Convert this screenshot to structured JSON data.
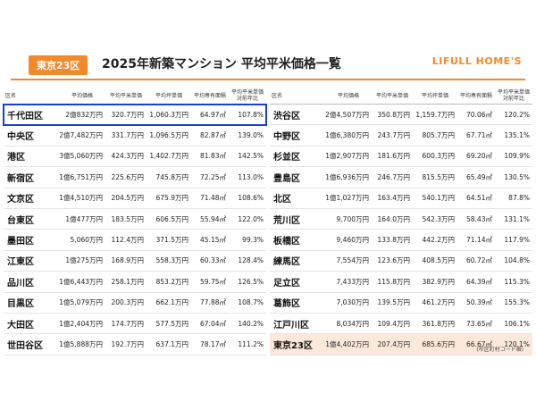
{
  "header": {
    "badge": "東京23区",
    "title": "2025年新築マンション 平均平米価格一覧",
    "logo": "LIFULL HOME'S"
  },
  "columns": [
    "区名",
    "平均価格",
    "平均平米単価",
    "平均坪単価",
    "平均専有面積",
    [
      "平均平米単価",
      "対前年比"
    ]
  ],
  "left": [
    [
      "千代田区",
      "2億832万円",
      "320.7万円",
      "1,060.3万円",
      "64.97㎡",
      "107.8%"
    ],
    [
      "中央区",
      "2億7,482万円",
      "331.7万円",
      "1,096.5万円",
      "82.87㎡",
      "139.0%"
    ],
    [
      "港区",
      "3億5,060万円",
      "424.3万円",
      "1,402.7万円",
      "81.83㎡",
      "142.5%"
    ],
    [
      "新宿区",
      "1億6,751万円",
      "225.6万円",
      "745.8万円",
      "72.25㎡",
      "113.0%"
    ],
    [
      "文京区",
      "1億4,510万円",
      "204.5万円",
      "675.9万円",
      "71.48㎡",
      "108.6%"
    ],
    [
      "台東区",
      "1億477万円",
      "183.5万円",
      "606.5万円",
      "55.94㎡",
      "122.0%"
    ],
    [
      "墨田区",
      "5,060万円",
      "112.4万円",
      "371.5万円",
      "45.15㎡",
      "99.3%"
    ],
    [
      "江東区",
      "1億275万円",
      "168.9万円",
      "558.3万円",
      "60.33㎡",
      "128.4%"
    ],
    [
      "品川区",
      "1億6,443万円",
      "258.1万円",
      "853.2万円",
      "59.75㎡",
      "126.5%"
    ],
    [
      "目黒区",
      "1億5,079万円",
      "200.3万円",
      "662.1万円",
      "77.88㎡",
      "108.7%"
    ],
    [
      "大田区",
      "1億2,404万円",
      "174.7万円",
      "577.5万円",
      "67.04㎡",
      "140.2%"
    ],
    [
      "世田谷区",
      "1億5,888万円",
      "192.7万円",
      "637.1万円",
      "78.17㎡",
      "111.2%"
    ]
  ],
  "right": [
    [
      "渋谷区",
      "2億4,507万円",
      "350.8万円",
      "1,159.7万円",
      "70.06㎡",
      "120.2%"
    ],
    [
      "中野区",
      "1億6,380万円",
      "243.7万円",
      "805.7万円",
      "67.71㎡",
      "135.1%"
    ],
    [
      "杉並区",
      "1億2,907万円",
      "181.6万円",
      "600.3万円",
      "69.20㎡",
      "109.9%"
    ],
    [
      "豊島区",
      "1億6,936万円",
      "246.7万円",
      "815.5万円",
      "65.49㎡",
      "130.5%"
    ],
    [
      "北区",
      "1億1,027万円",
      "163.4万円",
      "540.1万円",
      "64.51㎡",
      "87.8%"
    ],
    [
      "荒川区",
      "9,700万円",
      "164.0万円",
      "542.3万円",
      "58.43㎡",
      "131.1%"
    ],
    [
      "板橋区",
      "9,460万円",
      "133.8万円",
      "442.2万円",
      "71.14㎡",
      "117.9%"
    ],
    [
      "練馬区",
      "7,554万円",
      "123.6万円",
      "408.5万円",
      "60.72㎡",
      "104.8%"
    ],
    [
      "足立区",
      "7,433万円",
      "115.8万円",
      "382.9万円",
      "64.39㎡",
      "115.3%"
    ],
    [
      "葛飾区",
      "7,030万円",
      "139.5万円",
      "461.2万円",
      "50.39㎡",
      "155.3%"
    ],
    [
      "江戸川区",
      "8,034万円",
      "109.4万円",
      "361.8万円",
      "73.65㎡",
      "106.1%"
    ],
    [
      "東京23区",
      "1億4,402万円",
      "207.4万円",
      "685.6万円",
      "66.67㎡",
      "120.1%"
    ]
  ],
  "footnote": "(市区町村コード順)"
}
